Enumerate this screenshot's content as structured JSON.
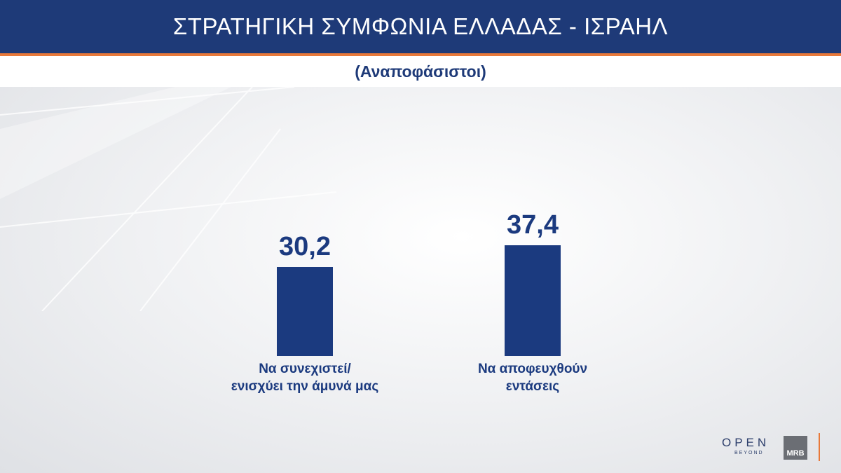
{
  "header": {
    "title": "ΣΤΡΑΤΗΓΙΚΗ ΣΥΜΦΩΝΙΑ ΕΛΛΑΔΑΣ - ΙΣΡΑΗΛ",
    "subtitle": "(Αναποφάσιστοι)"
  },
  "chart_data": {
    "type": "bar",
    "categories": [
      "Να συνεχιστεί/\nενισχύει την άμυνά μας",
      "Να αποφευχθούν\nεντάσεις"
    ],
    "values": [
      30.2,
      37.4
    ],
    "value_labels": [
      "30,2",
      "37,4"
    ],
    "color": "#1b3a7f"
  },
  "logos": {
    "open": "OPEN",
    "beyond": "BEYOND",
    "mrb": "MRB"
  }
}
